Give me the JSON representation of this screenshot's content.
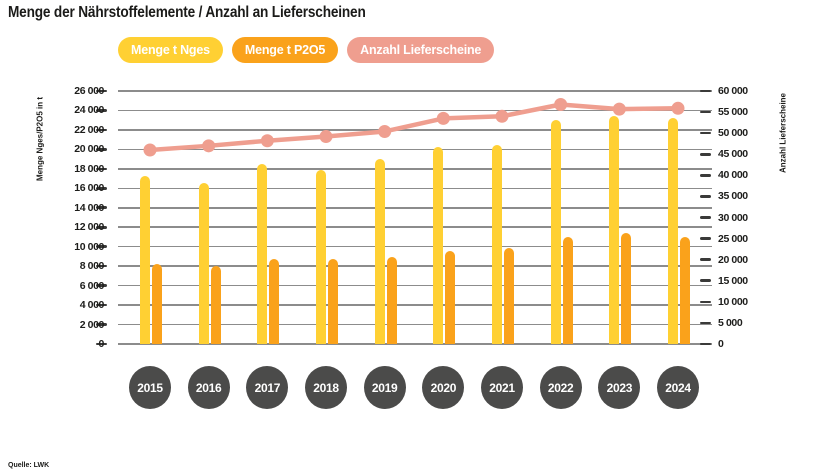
{
  "title": "Menge der Nährstoffelemente / Anzahl an Lieferscheinen",
  "source": "Quelle: LWK",
  "colors": {
    "background": "#FFFFFF",
    "title_text": "#1B1B19",
    "grid": "#8C8C8C",
    "tick": "#3A3A39",
    "axis_text": "#1D1D1B",
    "year_circle": "#4B4B4A",
    "year_text": "#FFFFFF",
    "legend_text": "#FFFFFF"
  },
  "chart_data": {
    "type": "bar",
    "subtype": "grouped bars with overlaid line, dual y-axes",
    "categories": [
      "2015",
      "2016",
      "2017",
      "2018",
      "2019",
      "2020",
      "2021",
      "2022",
      "2023",
      "2024"
    ],
    "series": [
      {
        "name": "Menge t Nges",
        "type": "bar",
        "axis": "left",
        "color": "#FFD033",
        "values": [
          17300,
          16500,
          18500,
          17900,
          19000,
          20200,
          20500,
          23000,
          23400,
          23200
        ]
      },
      {
        "name": "Menge t P2O5",
        "type": "bar",
        "axis": "left",
        "color": "#FAA21B",
        "values": [
          8200,
          8000,
          8700,
          8700,
          8900,
          9600,
          9900,
          11000,
          11400,
          11000
        ]
      },
      {
        "name": "Anzahl Lieferscheine",
        "type": "line",
        "axis": "right",
        "color": "#EF9E8F",
        "values": [
          46000,
          47000,
          48200,
          49200,
          50400,
          53500,
          54000,
          56800,
          55700,
          55900
        ]
      }
    ],
    "left_axis": {
      "label": "Menge Nges/P2O5 in t",
      "min": 0,
      "max": 26000,
      "step": 2000
    },
    "right_axis": {
      "label": "Anzahl Lieferscheine",
      "min": 0,
      "max": 60000,
      "step": 5000
    },
    "grid": true,
    "legend_position": "top"
  }
}
